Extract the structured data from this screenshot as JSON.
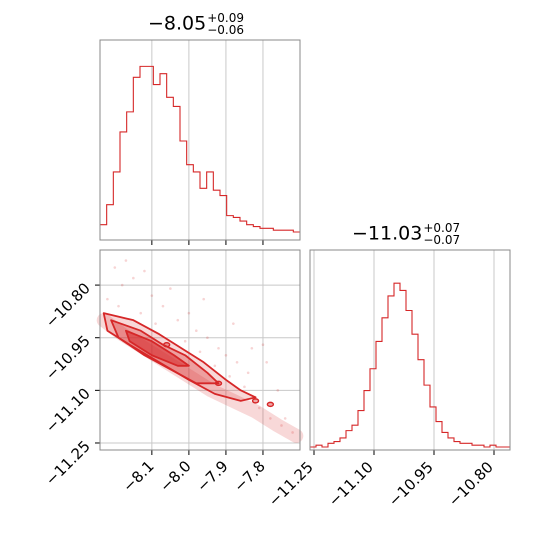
{
  "chart_data": [
    {
      "type": "histogram",
      "panel": "top-left",
      "title": {
        "value": "−8.05",
        "upper": "+0.09",
        "lower": "−0.06"
      },
      "xlim": [
        -8.24,
        -7.7
      ],
      "color": "#d62728",
      "bins": [
        {
          "x": -8.24,
          "y": 0.04
        },
        {
          "x": -8.222,
          "y": 0.15
        },
        {
          "x": -8.204,
          "y": 0.33
        },
        {
          "x": -8.186,
          "y": 0.55
        },
        {
          "x": -8.168,
          "y": 0.66
        },
        {
          "x": -8.15,
          "y": 0.85
        },
        {
          "x": -8.132,
          "y": 0.91
        },
        {
          "x": -8.114,
          "y": 0.91
        },
        {
          "x": -8.096,
          "y": 0.81
        },
        {
          "x": -8.078,
          "y": 0.87
        },
        {
          "x": -8.06,
          "y": 0.74
        },
        {
          "x": -8.042,
          "y": 0.69
        },
        {
          "x": -8.024,
          "y": 0.5
        },
        {
          "x": -8.006,
          "y": 0.37
        },
        {
          "x": -7.988,
          "y": 0.33
        },
        {
          "x": -7.97,
          "y": 0.24
        },
        {
          "x": -7.952,
          "y": 0.33
        },
        {
          "x": -7.934,
          "y": 0.23
        },
        {
          "x": -7.916,
          "y": 0.2
        },
        {
          "x": -7.898,
          "y": 0.09
        },
        {
          "x": -7.88,
          "y": 0.08
        },
        {
          "x": -7.862,
          "y": 0.06
        },
        {
          "x": -7.844,
          "y": 0.04
        },
        {
          "x": -7.826,
          "y": 0.03
        },
        {
          "x": -7.808,
          "y": 0.02
        },
        {
          "x": -7.79,
          "y": 0.02
        },
        {
          "x": -7.772,
          "y": 0.01
        },
        {
          "x": -7.754,
          "y": 0.01
        },
        {
          "x": -7.736,
          "y": 0.01
        },
        {
          "x": -7.718,
          "y": 0.0
        }
      ]
    },
    {
      "type": "histogram",
      "panel": "bottom-right",
      "title": {
        "value": "−11.03",
        "upper": "+0.07",
        "lower": "−0.07"
      },
      "xlim": [
        -11.26,
        -10.76
      ],
      "xticks": [
        -11.25,
        -11.1,
        -10.95,
        -10.8
      ],
      "xtick_labels": [
        "−11.25",
        "−11.10",
        "−10.95",
        "−10.80"
      ],
      "color": "#d62728",
      "bins": [
        {
          "x": -11.26,
          "y": 0.0
        },
        {
          "x": -11.245,
          "y": 0.01
        },
        {
          "x": -11.23,
          "y": 0.0
        },
        {
          "x": -11.215,
          "y": 0.02
        },
        {
          "x": -11.2,
          "y": 0.03
        },
        {
          "x": -11.185,
          "y": 0.05
        },
        {
          "x": -11.17,
          "y": 0.09
        },
        {
          "x": -11.155,
          "y": 0.12
        },
        {
          "x": -11.14,
          "y": 0.2
        },
        {
          "x": -11.125,
          "y": 0.31
        },
        {
          "x": -11.11,
          "y": 0.43
        },
        {
          "x": -11.095,
          "y": 0.58
        },
        {
          "x": -11.08,
          "y": 0.71
        },
        {
          "x": -11.065,
          "y": 0.83
        },
        {
          "x": -11.05,
          "y": 0.9
        },
        {
          "x": -11.035,
          "y": 0.86
        },
        {
          "x": -11.02,
          "y": 0.75
        },
        {
          "x": -11.005,
          "y": 0.62
        },
        {
          "x": -10.99,
          "y": 0.48
        },
        {
          "x": -10.975,
          "y": 0.34
        },
        {
          "x": -10.96,
          "y": 0.22
        },
        {
          "x": -10.945,
          "y": 0.14
        },
        {
          "x": -10.93,
          "y": 0.08
        },
        {
          "x": -10.915,
          "y": 0.05
        },
        {
          "x": -10.9,
          "y": 0.03
        },
        {
          "x": -10.885,
          "y": 0.02
        },
        {
          "x": -10.87,
          "y": 0.02
        },
        {
          "x": -10.855,
          "y": 0.01
        },
        {
          "x": -10.84,
          "y": 0.01
        },
        {
          "x": -10.825,
          "y": 0.0
        },
        {
          "x": -10.81,
          "y": 0.01
        },
        {
          "x": -10.795,
          "y": 0.0
        },
        {
          "x": -10.78,
          "y": 0.0
        }
      ]
    },
    {
      "type": "contour",
      "panel": "bottom-left",
      "xlim": [
        -8.24,
        -7.7
      ],
      "ylim": [
        -11.27,
        -10.7
      ],
      "xticks": [
        -8.1,
        -8.0,
        -7.9,
        -7.8
      ],
      "xtick_labels": [
        "−8.1",
        "−8.0",
        "−7.9",
        "−7.8"
      ],
      "yticks": [
        -10.8,
        -10.95,
        -11.1,
        -11.25
      ],
      "ytick_labels": [
        "−10.80",
        "−10.95",
        "−11.10",
        "−11.25"
      ],
      "color": "#d62728",
      "ridge": [
        {
          "x": -8.23,
          "y": -10.9
        },
        {
          "x": -8.18,
          "y": -10.94
        },
        {
          "x": -8.12,
          "y": -10.98
        },
        {
          "x": -8.06,
          "y": -11.02
        },
        {
          "x": -8.0,
          "y": -11.06
        },
        {
          "x": -7.94,
          "y": -11.1
        },
        {
          "x": -7.88,
          "y": -11.13
        },
        {
          "x": -7.82,
          "y": -11.16
        },
        {
          "x": -7.76,
          "y": -11.2
        },
        {
          "x": -7.71,
          "y": -11.23
        }
      ],
      "levels": [
        {
          "name": "inner",
          "shape": [
            {
              "x": -8.17,
              "y": -10.93
            },
            {
              "x": -8.1,
              "y": -10.96
            },
            {
              "x": -8.04,
              "y": -11.0
            },
            {
              "x": -8.0,
              "y": -11.03
            },
            {
              "x": -8.03,
              "y": -11.03
            },
            {
              "x": -8.1,
              "y": -11.0
            },
            {
              "x": -8.16,
              "y": -10.96
            }
          ]
        },
        {
          "name": "middle",
          "shape": [
            {
              "x": -8.21,
              "y": -10.9
            },
            {
              "x": -8.13,
              "y": -10.93
            },
            {
              "x": -8.07,
              "y": -10.97
            },
            {
              "x": -8.01,
              "y": -11.0
            },
            {
              "x": -7.95,
              "y": -11.05
            },
            {
              "x": -7.92,
              "y": -11.08
            },
            {
              "x": -7.98,
              "y": -11.08
            },
            {
              "x": -8.05,
              "y": -11.04
            },
            {
              "x": -8.12,
              "y": -11.0
            },
            {
              "x": -8.19,
              "y": -10.95
            }
          ]
        },
        {
          "name": "outer",
          "shape": [
            {
              "x": -8.23,
              "y": -10.88
            },
            {
              "x": -8.15,
              "y": -10.9
            },
            {
              "x": -8.08,
              "y": -10.94
            },
            {
              "x": -8.02,
              "y": -10.98
            },
            {
              "x": -7.96,
              "y": -11.02
            },
            {
              "x": -7.9,
              "y": -11.07
            },
            {
              "x": -7.86,
              "y": -11.1
            },
            {
              "x": -7.82,
              "y": -11.12
            },
            {
              "x": -7.86,
              "y": -11.13
            },
            {
              "x": -7.93,
              "y": -11.11
            },
            {
              "x": -8.0,
              "y": -11.07
            },
            {
              "x": -8.08,
              "y": -11.02
            },
            {
              "x": -8.16,
              "y": -10.97
            },
            {
              "x": -8.22,
              "y": -10.93
            }
          ]
        }
      ],
      "outlier_points": [
        {
          "x": -7.82,
          "y": -11.13
        },
        {
          "x": -7.78,
          "y": -11.14
        },
        {
          "x": -8.06,
          "y": -10.97
        },
        {
          "x": -7.92,
          "y": -11.08
        }
      ],
      "scatter_points": [
        {
          "x": -8.2,
          "y": -10.75
        },
        {
          "x": -8.18,
          "y": -10.8
        },
        {
          "x": -8.15,
          "y": -10.78
        },
        {
          "x": -8.1,
          "y": -10.83
        },
        {
          "x": -8.07,
          "y": -10.86
        },
        {
          "x": -8.05,
          "y": -10.81
        },
        {
          "x": -8.03,
          "y": -10.9
        },
        {
          "x": -8.0,
          "y": -10.88
        },
        {
          "x": -7.98,
          "y": -10.93
        },
        {
          "x": -7.95,
          "y": -10.95
        },
        {
          "x": -7.92,
          "y": -10.98
        },
        {
          "x": -7.9,
          "y": -11.0
        },
        {
          "x": -7.87,
          "y": -11.02
        },
        {
          "x": -7.84,
          "y": -11.05
        },
        {
          "x": -7.8,
          "y": -10.97
        },
        {
          "x": -7.76,
          "y": -11.1
        },
        {
          "x": -7.74,
          "y": -11.18
        },
        {
          "x": -7.72,
          "y": -11.22
        },
        {
          "x": -8.22,
          "y": -10.84
        },
        {
          "x": -8.19,
          "y": -10.86
        },
        {
          "x": -8.13,
          "y": -10.88
        },
        {
          "x": -8.09,
          "y": -10.91
        },
        {
          "x": -8.01,
          "y": -10.96
        },
        {
          "x": -7.97,
          "y": -10.99
        },
        {
          "x": -7.93,
          "y": -11.03
        },
        {
          "x": -7.89,
          "y": -11.06
        },
        {
          "x": -7.85,
          "y": -11.09
        },
        {
          "x": -7.81,
          "y": -11.15
        },
        {
          "x": -7.78,
          "y": -11.18
        },
        {
          "x": -7.75,
          "y": -11.2
        },
        {
          "x": -8.17,
          "y": -10.73
        },
        {
          "x": -8.12,
          "y": -10.76
        },
        {
          "x": -7.96,
          "y": -10.84
        },
        {
          "x": -7.88,
          "y": -10.91
        },
        {
          "x": -7.83,
          "y": -10.98
        },
        {
          "x": -7.79,
          "y": -11.02
        }
      ]
    }
  ]
}
